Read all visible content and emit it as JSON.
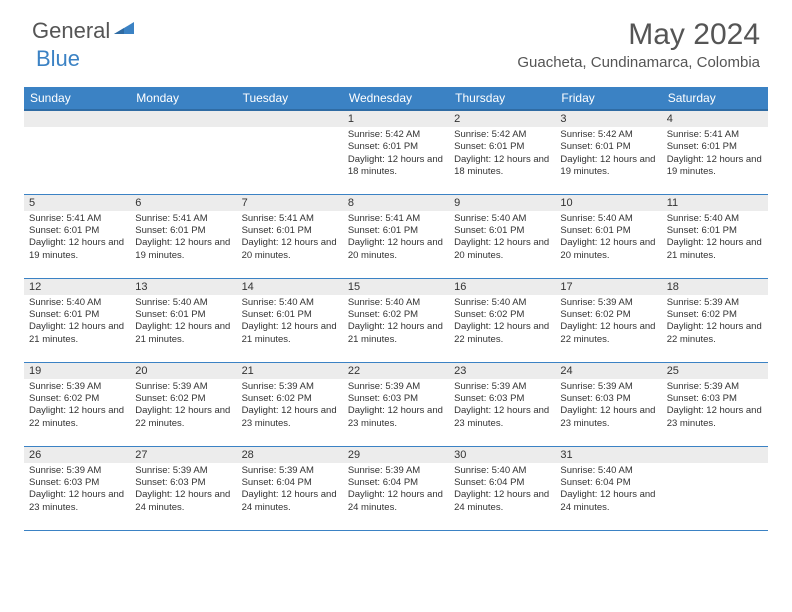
{
  "logo": {
    "text1": "General",
    "text2": "Blue",
    "icon_color": "#3b82c4"
  },
  "title": "May 2024",
  "location": "Guacheta, Cundinamarca, Colombia",
  "colors": {
    "header_bg": "#3b82c4",
    "header_border": "#2f6ba3",
    "daynum_bg": "#ececec",
    "cell_border": "#3b82c4",
    "text": "#333333",
    "logo_gray": "#555555"
  },
  "day_names": [
    "Sunday",
    "Monday",
    "Tuesday",
    "Wednesday",
    "Thursday",
    "Friday",
    "Saturday"
  ],
  "weeks": [
    [
      null,
      null,
      null,
      {
        "n": "1",
        "sr": "5:42 AM",
        "ss": "6:01 PM",
        "dl": "12 hours and 18 minutes."
      },
      {
        "n": "2",
        "sr": "5:42 AM",
        "ss": "6:01 PM",
        "dl": "12 hours and 18 minutes."
      },
      {
        "n": "3",
        "sr": "5:42 AM",
        "ss": "6:01 PM",
        "dl": "12 hours and 19 minutes."
      },
      {
        "n": "4",
        "sr": "5:41 AM",
        "ss": "6:01 PM",
        "dl": "12 hours and 19 minutes."
      }
    ],
    [
      {
        "n": "5",
        "sr": "5:41 AM",
        "ss": "6:01 PM",
        "dl": "12 hours and 19 minutes."
      },
      {
        "n": "6",
        "sr": "5:41 AM",
        "ss": "6:01 PM",
        "dl": "12 hours and 19 minutes."
      },
      {
        "n": "7",
        "sr": "5:41 AM",
        "ss": "6:01 PM",
        "dl": "12 hours and 20 minutes."
      },
      {
        "n": "8",
        "sr": "5:41 AM",
        "ss": "6:01 PM",
        "dl": "12 hours and 20 minutes."
      },
      {
        "n": "9",
        "sr": "5:40 AM",
        "ss": "6:01 PM",
        "dl": "12 hours and 20 minutes."
      },
      {
        "n": "10",
        "sr": "5:40 AM",
        "ss": "6:01 PM",
        "dl": "12 hours and 20 minutes."
      },
      {
        "n": "11",
        "sr": "5:40 AM",
        "ss": "6:01 PM",
        "dl": "12 hours and 21 minutes."
      }
    ],
    [
      {
        "n": "12",
        "sr": "5:40 AM",
        "ss": "6:01 PM",
        "dl": "12 hours and 21 minutes."
      },
      {
        "n": "13",
        "sr": "5:40 AM",
        "ss": "6:01 PM",
        "dl": "12 hours and 21 minutes."
      },
      {
        "n": "14",
        "sr": "5:40 AM",
        "ss": "6:01 PM",
        "dl": "12 hours and 21 minutes."
      },
      {
        "n": "15",
        "sr": "5:40 AM",
        "ss": "6:02 PM",
        "dl": "12 hours and 21 minutes."
      },
      {
        "n": "16",
        "sr": "5:40 AM",
        "ss": "6:02 PM",
        "dl": "12 hours and 22 minutes."
      },
      {
        "n": "17",
        "sr": "5:39 AM",
        "ss": "6:02 PM",
        "dl": "12 hours and 22 minutes."
      },
      {
        "n": "18",
        "sr": "5:39 AM",
        "ss": "6:02 PM",
        "dl": "12 hours and 22 minutes."
      }
    ],
    [
      {
        "n": "19",
        "sr": "5:39 AM",
        "ss": "6:02 PM",
        "dl": "12 hours and 22 minutes."
      },
      {
        "n": "20",
        "sr": "5:39 AM",
        "ss": "6:02 PM",
        "dl": "12 hours and 22 minutes."
      },
      {
        "n": "21",
        "sr": "5:39 AM",
        "ss": "6:02 PM",
        "dl": "12 hours and 23 minutes."
      },
      {
        "n": "22",
        "sr": "5:39 AM",
        "ss": "6:03 PM",
        "dl": "12 hours and 23 minutes."
      },
      {
        "n": "23",
        "sr": "5:39 AM",
        "ss": "6:03 PM",
        "dl": "12 hours and 23 minutes."
      },
      {
        "n": "24",
        "sr": "5:39 AM",
        "ss": "6:03 PM",
        "dl": "12 hours and 23 minutes."
      },
      {
        "n": "25",
        "sr": "5:39 AM",
        "ss": "6:03 PM",
        "dl": "12 hours and 23 minutes."
      }
    ],
    [
      {
        "n": "26",
        "sr": "5:39 AM",
        "ss": "6:03 PM",
        "dl": "12 hours and 23 minutes."
      },
      {
        "n": "27",
        "sr": "5:39 AM",
        "ss": "6:03 PM",
        "dl": "12 hours and 24 minutes."
      },
      {
        "n": "28",
        "sr": "5:39 AM",
        "ss": "6:04 PM",
        "dl": "12 hours and 24 minutes."
      },
      {
        "n": "29",
        "sr": "5:39 AM",
        "ss": "6:04 PM",
        "dl": "12 hours and 24 minutes."
      },
      {
        "n": "30",
        "sr": "5:40 AM",
        "ss": "6:04 PM",
        "dl": "12 hours and 24 minutes."
      },
      {
        "n": "31",
        "sr": "5:40 AM",
        "ss": "6:04 PM",
        "dl": "12 hours and 24 minutes."
      },
      null
    ]
  ],
  "labels": {
    "sunrise": "Sunrise:",
    "sunset": "Sunset:",
    "daylight": "Daylight:"
  }
}
